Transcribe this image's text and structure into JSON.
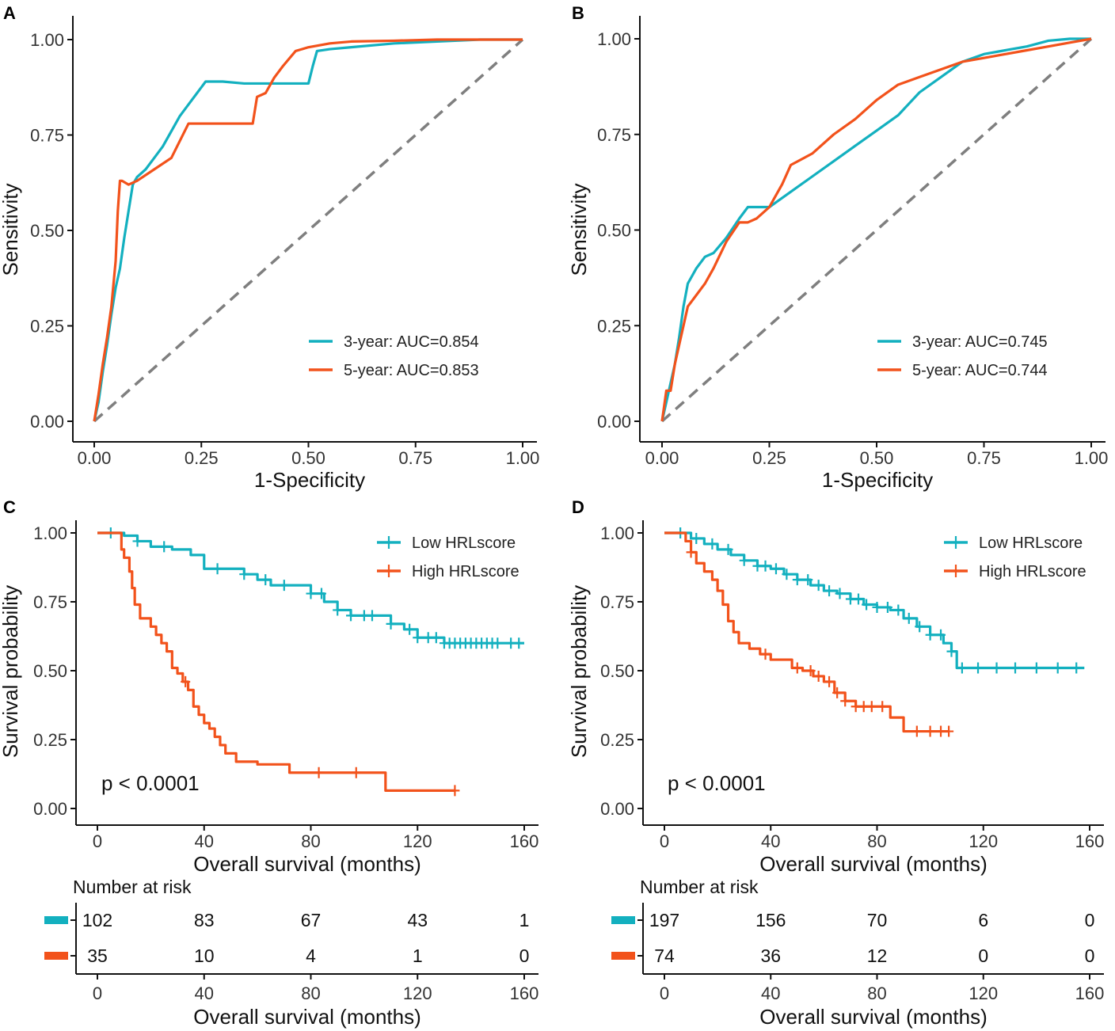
{
  "colors": {
    "teal": "#13B0BF",
    "orange": "#F2521B",
    "diagonal": "#7f7f7f",
    "axis": "#111111"
  },
  "panels": [
    {
      "id": "A",
      "letter": "A",
      "chart_data": {
        "type": "line",
        "title": "",
        "xlabel": "1-Specificity",
        "ylabel": "Sensitivity",
        "xlim": [
          0,
          1
        ],
        "ylim": [
          0,
          1
        ],
        "xticks": [
          "0.00",
          "0.25",
          "0.50",
          "0.75",
          "1.00"
        ],
        "yticks": [
          "0.00",
          "0.25",
          "0.50",
          "0.75",
          "1.00"
        ],
        "legend_position": "bottom-right",
        "diagonal": true,
        "series": [
          {
            "name": "3-year: AUC=0.854",
            "color": "teal",
            "x": [
              0,
              0.01,
              0.02,
              0.03,
              0.04,
              0.05,
              0.06,
              0.07,
              0.08,
              0.09,
              0.1,
              0.12,
              0.14,
              0.16,
              0.18,
              0.2,
              0.22,
              0.24,
              0.26,
              0.28,
              0.3,
              0.35,
              0.4,
              0.45,
              0.5,
              0.51,
              0.52,
              0.55,
              0.6,
              0.7,
              0.8,
              0.9,
              1.0
            ],
            "y": [
              0,
              0.05,
              0.13,
              0.2,
              0.28,
              0.35,
              0.4,
              0.48,
              0.55,
              0.62,
              0.64,
              0.66,
              0.69,
              0.72,
              0.76,
              0.8,
              0.83,
              0.86,
              0.89,
              0.89,
              0.89,
              0.885,
              0.885,
              0.885,
              0.885,
              0.93,
              0.97,
              0.975,
              0.98,
              0.99,
              0.995,
              1.0,
              1.0
            ]
          },
          {
            "name": "5-year: AUC=0.853",
            "color": "orange",
            "x": [
              0,
              0.01,
              0.02,
              0.03,
              0.04,
              0.05,
              0.055,
              0.06,
              0.065,
              0.08,
              0.1,
              0.14,
              0.18,
              0.22,
              0.28,
              0.32,
              0.37,
              0.38,
              0.4,
              0.42,
              0.44,
              0.47,
              0.5,
              0.55,
              0.6,
              0.7,
              0.8,
              0.9,
              1.0
            ],
            "y": [
              0,
              0.07,
              0.15,
              0.22,
              0.3,
              0.42,
              0.55,
              0.63,
              0.63,
              0.62,
              0.63,
              0.66,
              0.69,
              0.78,
              0.78,
              0.78,
              0.78,
              0.85,
              0.86,
              0.9,
              0.93,
              0.97,
              0.98,
              0.99,
              0.995,
              0.997,
              1.0,
              1.0,
              1.0
            ]
          }
        ]
      }
    },
    {
      "id": "B",
      "letter": "B",
      "chart_data": {
        "type": "line",
        "title": "",
        "xlabel": "1-Specificity",
        "ylabel": "Sensitivity",
        "xlim": [
          0,
          1
        ],
        "ylim": [
          0,
          1
        ],
        "xticks": [
          "0.00",
          "0.25",
          "0.50",
          "0.75",
          "1.00"
        ],
        "yticks": [
          "0.00",
          "0.25",
          "0.50",
          "0.75",
          "1.00"
        ],
        "legend_position": "bottom-right",
        "diagonal": true,
        "series": [
          {
            "name": "3-year: AUC=0.745",
            "color": "teal",
            "x": [
              0,
              0.01,
              0.02,
              0.03,
              0.04,
              0.05,
              0.06,
              0.08,
              0.1,
              0.12,
              0.15,
              0.18,
              0.2,
              0.25,
              0.3,
              0.35,
              0.4,
              0.45,
              0.5,
              0.55,
              0.6,
              0.65,
              0.7,
              0.75,
              0.8,
              0.85,
              0.9,
              0.95,
              1.0
            ],
            "y": [
              0,
              0.05,
              0.1,
              0.15,
              0.22,
              0.3,
              0.36,
              0.4,
              0.43,
              0.44,
              0.48,
              0.53,
              0.56,
              0.56,
              0.6,
              0.64,
              0.68,
              0.72,
              0.76,
              0.8,
              0.86,
              0.9,
              0.94,
              0.96,
              0.97,
              0.98,
              0.995,
              1.0,
              1.0
            ]
          },
          {
            "name": "5-year: AUC=0.744",
            "color": "orange",
            "x": [
              0,
              0.01,
              0.02,
              0.03,
              0.05,
              0.06,
              0.08,
              0.1,
              0.12,
              0.15,
              0.18,
              0.2,
              0.22,
              0.25,
              0.28,
              0.3,
              0.35,
              0.4,
              0.45,
              0.5,
              0.55,
              0.6,
              0.65,
              0.7,
              0.75,
              0.8,
              0.85,
              0.9,
              0.95,
              1.0
            ],
            "y": [
              0,
              0.08,
              0.08,
              0.15,
              0.25,
              0.3,
              0.33,
              0.36,
              0.4,
              0.47,
              0.52,
              0.52,
              0.53,
              0.56,
              0.62,
              0.67,
              0.7,
              0.75,
              0.79,
              0.84,
              0.88,
              0.9,
              0.92,
              0.94,
              0.95,
              0.96,
              0.97,
              0.98,
              0.99,
              1.0
            ]
          }
        ]
      }
    },
    {
      "id": "C",
      "letter": "C",
      "chart_data": {
        "type": "line",
        "title": "",
        "xlabel": "Overall survival (months)",
        "ylabel": "Survival probability",
        "xlim": [
          0,
          160
        ],
        "ylim": [
          0,
          1
        ],
        "xticks": [
          "0",
          "40",
          "80",
          "120",
          "160"
        ],
        "yticks": [
          "0.00",
          "0.25",
          "0.50",
          "0.75",
          "1.00"
        ],
        "legend_position": "top-right",
        "pvalue": "p < 0.0001",
        "series": [
          {
            "name": "Low HRLscore",
            "color": "teal",
            "step": true,
            "x": [
              0,
              5,
              10,
              15,
              20,
              28,
              35,
              40,
              45,
              50,
              55,
              60,
              65,
              70,
              80,
              85,
              90,
              95,
              100,
              105,
              110,
              115,
              120,
              130,
              140,
              150,
              160
            ],
            "y": [
              1.0,
              1.0,
              0.99,
              0.97,
              0.95,
              0.94,
              0.92,
              0.87,
              0.87,
              0.87,
              0.85,
              0.83,
              0.81,
              0.81,
              0.78,
              0.75,
              0.72,
              0.7,
              0.7,
              0.7,
              0.67,
              0.65,
              0.62,
              0.6,
              0.6,
              0.6,
              0.6
            ],
            "censors": [
              5,
              15,
              25,
              45,
              55,
              63,
              70,
              80,
              84,
              90,
              95,
              100,
              103,
              110,
              117,
              120,
              124,
              127,
              130,
              132,
              134,
              136,
              138,
              140,
              142,
              144,
              146,
              148,
              150,
              155,
              158
            ]
          },
          {
            "name": "High HRLscore",
            "color": "orange",
            "step": true,
            "x": [
              0,
              8,
              9,
              10,
              12,
              13,
              14,
              16,
              18,
              20,
              22,
              24,
              26,
              28,
              30,
              32,
              34,
              36,
              38,
              40,
              42,
              44,
              46,
              48,
              52,
              60,
              72,
              80,
              90,
              100,
              108,
              110,
              120,
              134
            ],
            "y": [
              1.0,
              1.0,
              0.94,
              0.91,
              0.86,
              0.8,
              0.74,
              0.69,
              0.69,
              0.66,
              0.63,
              0.6,
              0.57,
              0.51,
              0.49,
              0.46,
              0.43,
              0.37,
              0.34,
              0.31,
              0.29,
              0.26,
              0.23,
              0.2,
              0.17,
              0.16,
              0.13,
              0.13,
              0.13,
              0.13,
              0.065,
              0.065,
              0.065,
              0.065
            ],
            "censors": [
              33,
              83,
              97,
              134
            ]
          }
        ],
        "risk_table": {
          "title": "Number at risk",
          "times": [
            "0",
            "40",
            "80",
            "120",
            "160"
          ],
          "rows": [
            {
              "color": "teal",
              "values": [
                "102",
                "83",
                "67",
                "43",
                "1"
              ]
            },
            {
              "color": "orange",
              "values": [
                "35",
                "10",
                "4",
                "1",
                "0"
              ]
            }
          ],
          "xlabel": "Overall survival (months)"
        }
      }
    },
    {
      "id": "D",
      "letter": "D",
      "chart_data": {
        "type": "line",
        "title": "",
        "xlabel": "Overall survival (months)",
        "ylabel": "Survival probability",
        "xlim": [
          0,
          160
        ],
        "ylim": [
          0,
          1
        ],
        "xticks": [
          "0",
          "40",
          "80",
          "120",
          "160"
        ],
        "yticks": [
          "0.00",
          "0.25",
          "0.50",
          "0.75",
          "1.00"
        ],
        "legend_position": "top-right",
        "pvalue": "p < 0.0001",
        "series": [
          {
            "name": "Low HRLscore",
            "color": "teal",
            "step": true,
            "x": [
              0,
              5,
              10,
              15,
              20,
              25,
              30,
              35,
              40,
              45,
              50,
              55,
              60,
              65,
              70,
              75,
              80,
              85,
              90,
              95,
              100,
              105,
              108,
              110,
              120,
              140,
              158
            ],
            "y": [
              1.0,
              1.0,
              0.98,
              0.96,
              0.94,
              0.92,
              0.9,
              0.88,
              0.87,
              0.85,
              0.83,
              0.81,
              0.79,
              0.78,
              0.76,
              0.74,
              0.73,
              0.72,
              0.69,
              0.66,
              0.63,
              0.6,
              0.57,
              0.51,
              0.51,
              0.51,
              0.51
            ],
            "censors": [
              6,
              12,
              18,
              24,
              30,
              35,
              38,
              42,
              46,
              50,
              54,
              58,
              62,
              66,
              70,
              73,
              76,
              80,
              84,
              88,
              92,
              96,
              100,
              104,
              108,
              112,
              118,
              125,
              132,
              140,
              148,
              155
            ]
          },
          {
            "name": "High HRLscore",
            "color": "orange",
            "step": true,
            "x": [
              0,
              6,
              8,
              10,
              12,
              15,
              18,
              20,
              22,
              24,
              26,
              28,
              32,
              36,
              40,
              48,
              52,
              56,
              60,
              64,
              68,
              72,
              80,
              84,
              85,
              88,
              90,
              96,
              107
            ],
            "y": [
              1.0,
              1.0,
              0.97,
              0.93,
              0.89,
              0.86,
              0.83,
              0.79,
              0.74,
              0.68,
              0.64,
              0.6,
              0.58,
              0.56,
              0.54,
              0.51,
              0.5,
              0.48,
              0.46,
              0.42,
              0.39,
              0.37,
              0.37,
              0.37,
              0.33,
              0.33,
              0.28,
              0.28,
              0.28
            ],
            "censors": [
              10,
              38,
              50,
              55,
              58,
              62,
              65,
              68,
              72,
              75,
              78,
              82,
              95,
              100,
              104,
              107
            ]
          }
        ],
        "risk_table": {
          "title": "Number at risk",
          "times": [
            "0",
            "40",
            "80",
            "120",
            "160"
          ],
          "rows": [
            {
              "color": "teal",
              "values": [
                "197",
                "156",
                "70",
                "6",
                "0"
              ]
            },
            {
              "color": "orange",
              "values": [
                "74",
                "36",
                "12",
                "0",
                "0"
              ]
            }
          ],
          "xlabel": "Overall survival (months)"
        }
      }
    }
  ]
}
